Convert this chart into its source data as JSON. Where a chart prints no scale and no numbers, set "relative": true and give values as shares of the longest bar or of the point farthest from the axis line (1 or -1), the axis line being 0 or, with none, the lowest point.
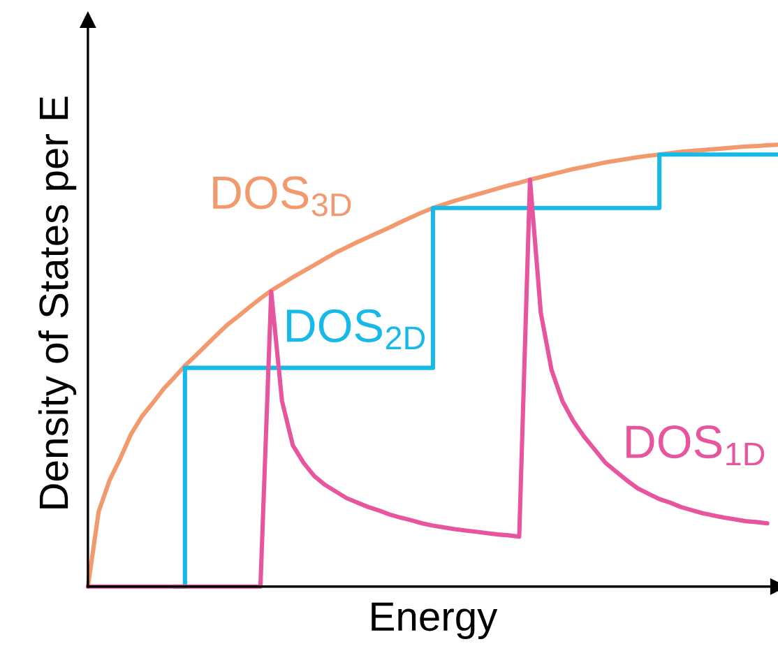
{
  "chart_data": {
    "type": "line",
    "relative": true,
    "xlabel": "Energy",
    "ylabel": "Density of States per E",
    "line_style": "solid",
    "categories": [
      null,
      null,
      null,
      null,
      null,
      null,
      null,
      null,
      null,
      null,
      null,
      null,
      null,
      null,
      null,
      null,
      null,
      null,
      null,
      null,
      null,
      null,
      null,
      null,
      null,
      null,
      null,
      null,
      null,
      null,
      null,
      null,
      null,
      null,
      null,
      null,
      null,
      null,
      null,
      null,
      null,
      null,
      null,
      null,
      null,
      null,
      null,
      null,
      null,
      null,
      null,
      null,
      null,
      null,
      null,
      null,
      null,
      null,
      null,
      null,
      null,
      null,
      null,
      null,
      null
    ],
    "series": [
      {
        "name": "DOS$_{3D}$",
        "color": "#f29a6e",
        "values": [
          0,
          0.17,
          0.24,
          0.29,
          0.345,
          0.385,
          0.415,
          0.447,
          0.473,
          0.5,
          0.523,
          0.547,
          0.571,
          0.594,
          0.613,
          0.633,
          0.652,
          0.67,
          0.685,
          0.7,
          0.714,
          0.728,
          0.742,
          0.756,
          0.768,
          0.78,
          0.791,
          0.802,
          0.813,
          0.825,
          0.836,
          0.847,
          0.857,
          0.865,
          0.873,
          0.88,
          0.887,
          0.894,
          0.901,
          0.908,
          0.914,
          0.921,
          0.927,
          0.933,
          0.939,
          0.945,
          0.95,
          0.955,
          0.96,
          0.964,
          0.968,
          0.972,
          0.975,
          0.978,
          0.981,
          0.984,
          0.986,
          0.988,
          0.99,
          0.992,
          0.994,
          0.996,
          0.997,
          0.999,
          1.0
        ]
      },
      {
        "name": "DOS$_{2D}$",
        "color": "#16b9e8",
        "type": "step",
        "values": [
          null,
          null,
          null,
          null,
          null,
          null,
          null,
          null,
          0,
          0.495,
          0.495,
          0.495,
          0.495,
          0.495,
          0.495,
          0.495,
          0.495,
          0.495,
          0.495,
          0.495,
          0.495,
          0.495,
          0.495,
          0.495,
          0.495,
          0.495,
          0.495,
          0.495,
          0.495,
          0.495,
          0.495,
          0.495,
          0.857,
          0.857,
          0.857,
          0.857,
          0.857,
          0.857,
          0.857,
          0.857,
          0.857,
          0.857,
          0.857,
          0.857,
          0.857,
          0.857,
          0.857,
          0.857,
          0.857,
          0.857,
          0.857,
          0.857,
          0.857,
          0.978,
          0.978,
          0.978,
          0.978,
          0.978,
          0.978,
          0.978,
          0.978,
          0.978,
          0.978,
          0.978,
          0.978
        ]
      },
      {
        "name": "DOS$_{1D}$",
        "color": "#e8559f",
        "values": [
          0,
          0,
          0,
          0,
          0,
          0,
          0,
          0,
          0,
          0,
          0,
          0,
          0,
          0,
          0,
          0,
          0,
          0.667,
          0.42,
          0.32,
          0.28,
          0.25,
          0.23,
          0.215,
          0.2,
          0.19,
          0.18,
          0.172,
          0.163,
          0.156,
          0.15,
          0.143,
          0.138,
          0.134,
          0.13,
          0.127,
          0.124,
          0.121,
          0.118,
          0.116,
          0.113,
          0.921,
          0.62,
          0.49,
          0.42,
          0.375,
          0.34,
          0.31,
          0.28,
          0.26,
          0.24,
          0.222,
          0.21,
          0.198,
          0.19,
          0.18,
          0.173,
          0.166,
          0.161,
          0.156,
          0.152,
          0.148,
          0.146,
          0.143,
          null
        ]
      }
    ]
  }
}
